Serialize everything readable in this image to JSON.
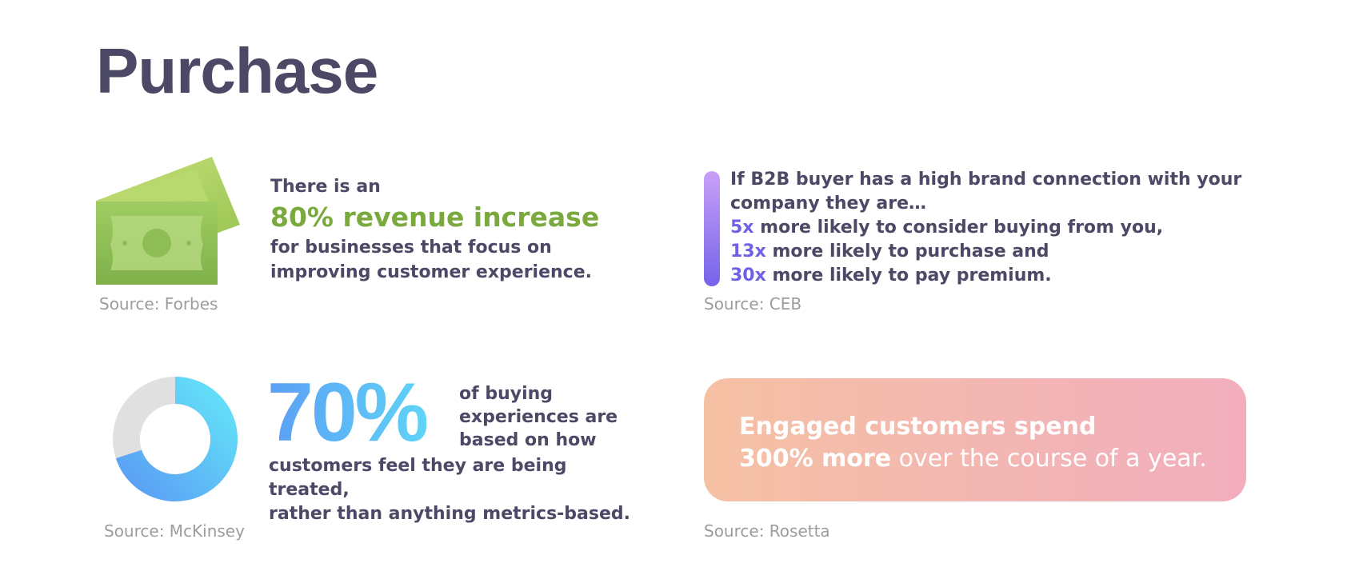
{
  "page": {
    "title": "Purchase"
  },
  "forbes": {
    "line1": "There is an",
    "highlight": "80% revenue increase",
    "line3a": "for businesses that focus on",
    "line3b": "improving customer experience.",
    "source": "Source: Forbes",
    "icon": "money-icon",
    "accent": "#7aaa3e"
  },
  "ceb": {
    "intro_a": "If B2B buyer has a high brand connection with your",
    "intro_b": "company they are…",
    "items": [
      {
        "multiplier": "5x",
        "text": " more likely to consider buying from you,"
      },
      {
        "multiplier": "13x",
        "text": " more likely to purchase and"
      },
      {
        "multiplier": "30x",
        "text": " more likely to pay premium."
      }
    ],
    "source": "Source: CEB",
    "accent": "#7060e6"
  },
  "mckinsey": {
    "percent_text": "70%",
    "percent_value": 70,
    "side_a": "of buying",
    "side_b": "experiences are",
    "side_c": "based on how",
    "bottom_a": "customers feel they are being treated,",
    "bottom_b": "rather than anything metrics-based.",
    "source": "Source: McKinsey"
  },
  "rosetta": {
    "line1": "Engaged customers spend",
    "strong": "300% more",
    "rest": " over the course of a year.",
    "source": "Source: Rosetta"
  }
}
